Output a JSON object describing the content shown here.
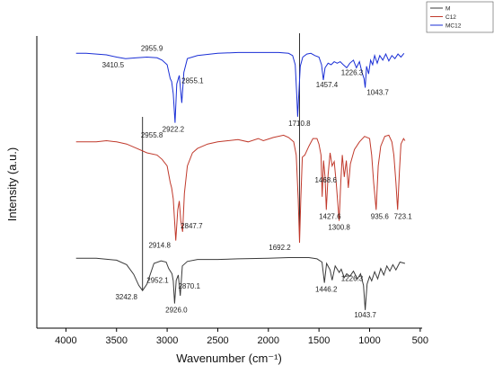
{
  "chart_data": {
    "type": "line",
    "title": "",
    "xlabel": "Wavenumber (cm⁻¹)",
    "ylabel": "Intensity (a.u.)",
    "x_ticks": [
      4000,
      3500,
      3000,
      2500,
      2000,
      1500,
      1000,
      500
    ],
    "x_tick_labels": [
      "4000",
      "3500",
      "3000",
      "2500",
      "2000",
      "1500",
      "1000",
      "500"
    ],
    "xlim": [
      4000,
      500
    ],
    "x_reversed": true,
    "grid": false,
    "legend_position": "top-right",
    "legend": [
      "M",
      "C12",
      "MC12"
    ],
    "series": [
      {
        "name": "M",
        "color": "#3a3a3a",
        "points": [
          [
            3900,
            0.9
          ],
          [
            3700,
            0.9
          ],
          [
            3500,
            0.87
          ],
          [
            3400,
            0.8
          ],
          [
            3330,
            0.65
          ],
          [
            3280,
            0.48
          ],
          [
            3242.8,
            0.4
          ],
          [
            3200,
            0.5
          ],
          [
            3130,
            0.82
          ],
          [
            3060,
            0.86
          ],
          [
            3010,
            0.84
          ],
          [
            2985,
            0.74
          ],
          [
            2952.1,
            0.66
          ],
          [
            2940,
            0.55
          ],
          [
            2926,
            0.2
          ],
          [
            2910,
            0.56
          ],
          [
            2890,
            0.64
          ],
          [
            2870.1,
            0.32
          ],
          [
            2850,
            0.78
          ],
          [
            2800,
            0.85
          ],
          [
            2700,
            0.88
          ],
          [
            2500,
            0.88
          ],
          [
            2300,
            0.89
          ],
          [
            2000,
            0.9
          ],
          [
            1800,
            0.91
          ],
          [
            1600,
            0.91
          ],
          [
            1520,
            0.89
          ],
          [
            1470,
            0.84
          ],
          [
            1446.2,
            0.52
          ],
          [
            1425,
            0.82
          ],
          [
            1390,
            0.72
          ],
          [
            1370,
            0.56
          ],
          [
            1340,
            0.78
          ],
          [
            1300,
            0.68
          ],
          [
            1280,
            0.73
          ],
          [
            1250,
            0.6
          ],
          [
            1226.3,
            0.66
          ],
          [
            1195,
            0.62
          ],
          [
            1160,
            0.7
          ],
          [
            1120,
            0.58
          ],
          [
            1090,
            0.66
          ],
          [
            1060,
            0.48
          ],
          [
            1043.7,
            0.1
          ],
          [
            1025,
            0.5
          ],
          [
            1000,
            0.62
          ],
          [
            980,
            0.55
          ],
          [
            950,
            0.69
          ],
          [
            920,
            0.58
          ],
          [
            890,
            0.74
          ],
          [
            860,
            0.64
          ],
          [
            830,
            0.78
          ],
          [
            800,
            0.7
          ],
          [
            770,
            0.8
          ],
          [
            740,
            0.72
          ],
          [
            700,
            0.84
          ],
          [
            650,
            0.82
          ]
        ]
      },
      {
        "name": "C12",
        "color": "#c0392b",
        "points": [
          [
            3900,
            0.92
          ],
          [
            3800,
            0.92
          ],
          [
            3700,
            0.92
          ],
          [
            3600,
            0.93
          ],
          [
            3500,
            0.92
          ],
          [
            3400,
            0.9
          ],
          [
            3300,
            0.86
          ],
          [
            3200,
            0.82
          ],
          [
            3100,
            0.8
          ],
          [
            3050,
            0.76
          ],
          [
            3000,
            0.7
          ],
          [
            2970,
            0.55
          ],
          [
            2955.8,
            0.5
          ],
          [
            2940,
            0.4
          ],
          [
            2914.8,
            0.02
          ],
          [
            2895,
            0.3
          ],
          [
            2880,
            0.38
          ],
          [
            2865,
            0.2
          ],
          [
            2847.7,
            0.1
          ],
          [
            2830,
            0.45
          ],
          [
            2800,
            0.7
          ],
          [
            2750,
            0.82
          ],
          [
            2700,
            0.86
          ],
          [
            2600,
            0.9
          ],
          [
            2500,
            0.92
          ],
          [
            2400,
            0.93
          ],
          [
            2300,
            0.94
          ],
          [
            2200,
            0.92
          ],
          [
            2100,
            0.95
          ],
          [
            2050,
            0.93
          ],
          [
            1950,
            0.96
          ],
          [
            1850,
            0.98
          ],
          [
            1800,
            0.96
          ],
          [
            1750,
            0.92
          ],
          [
            1725,
            0.8
          ],
          [
            1705,
            0.4
          ],
          [
            1692.2,
            0.0
          ],
          [
            1680,
            0.4
          ],
          [
            1665,
            0.78
          ],
          [
            1640,
            0.8
          ],
          [
            1600,
            0.88
          ],
          [
            1560,
            0.95
          ],
          [
            1520,
            0.95
          ],
          [
            1500,
            0.9
          ],
          [
            1480,
            0.8
          ],
          [
            1468.6,
            0.42
          ],
          [
            1455,
            0.75
          ],
          [
            1440,
            0.6
          ],
          [
            1427.6,
            0.3
          ],
          [
            1410,
            0.62
          ],
          [
            1390,
            0.82
          ],
          [
            1370,
            0.7
          ],
          [
            1350,
            0.74
          ],
          [
            1330,
            0.55
          ],
          [
            1300.8,
            0.2
          ],
          [
            1285,
            0.55
          ],
          [
            1270,
            0.8
          ],
          [
            1250,
            0.6
          ],
          [
            1230,
            0.75
          ],
          [
            1210,
            0.5
          ],
          [
            1190,
            0.72
          ],
          [
            1150,
            0.85
          ],
          [
            1100,
            0.92
          ],
          [
            1050,
            0.97
          ],
          [
            1000,
            0.95
          ],
          [
            980,
            0.8
          ],
          [
            960,
            0.55
          ],
          [
            935.6,
            0.3
          ],
          [
            915,
            0.7
          ],
          [
            890,
            0.88
          ],
          [
            850,
            0.97
          ],
          [
            810,
            0.98
          ],
          [
            780,
            0.92
          ],
          [
            760,
            0.8
          ],
          [
            740,
            0.55
          ],
          [
            723.1,
            0.3
          ],
          [
            705,
            0.65
          ],
          [
            690,
            0.9
          ],
          [
            665,
            0.95
          ],
          [
            650,
            0.93
          ]
        ]
      },
      {
        "name": "MC12",
        "color": "#1a2fd6",
        "points": [
          [
            3900,
            0.95
          ],
          [
            3800,
            0.95
          ],
          [
            3700,
            0.94
          ],
          [
            3600,
            0.93
          ],
          [
            3500,
            0.9
          ],
          [
            3410.5,
            0.88
          ],
          [
            3300,
            0.89
          ],
          [
            3200,
            0.9
          ],
          [
            3100,
            0.89
          ],
          [
            3050,
            0.86
          ],
          [
            3000,
            0.8
          ],
          [
            2970,
            0.62
          ],
          [
            2955.9,
            0.58
          ],
          [
            2940,
            0.42
          ],
          [
            2922.2,
            0.04
          ],
          [
            2905,
            0.55
          ],
          [
            2880,
            0.66
          ],
          [
            2855.1,
            0.3
          ],
          [
            2835,
            0.7
          ],
          [
            2800,
            0.88
          ],
          [
            2700,
            0.92
          ],
          [
            2500,
            0.95
          ],
          [
            2300,
            0.96
          ],
          [
            2100,
            0.96
          ],
          [
            1900,
            0.96
          ],
          [
            1800,
            0.95
          ],
          [
            1760,
            0.92
          ],
          [
            1735,
            0.8
          ],
          [
            1720,
            0.4
          ],
          [
            1710.8,
            0.12
          ],
          [
            1700,
            0.4
          ],
          [
            1685,
            0.78
          ],
          [
            1660,
            0.9
          ],
          [
            1620,
            0.94
          ],
          [
            1580,
            0.95
          ],
          [
            1540,
            0.92
          ],
          [
            1500,
            0.9
          ],
          [
            1475,
            0.8
          ],
          [
            1457.4,
            0.6
          ],
          [
            1440,
            0.76
          ],
          [
            1410,
            0.82
          ],
          [
            1380,
            0.8
          ],
          [
            1350,
            0.84
          ],
          [
            1320,
            0.82
          ],
          [
            1290,
            0.84
          ],
          [
            1260,
            0.8
          ],
          [
            1226.3,
            0.76
          ],
          [
            1195,
            0.82
          ],
          [
            1160,
            0.86
          ],
          [
            1130,
            0.76
          ],
          [
            1100,
            0.84
          ],
          [
            1075,
            0.7
          ],
          [
            1055,
            0.62
          ],
          [
            1043.7,
            0.5
          ],
          [
            1030,
            0.78
          ],
          [
            1010,
            0.68
          ],
          [
            990,
            0.86
          ],
          [
            970,
            0.8
          ],
          [
            950,
            0.92
          ],
          [
            925,
            0.82
          ],
          [
            900,
            0.92
          ],
          [
            870,
            0.86
          ],
          [
            840,
            0.94
          ],
          [
            810,
            0.85
          ],
          [
            780,
            0.92
          ],
          [
            750,
            0.88
          ],
          [
            720,
            0.94
          ],
          [
            690,
            0.9
          ],
          [
            660,
            0.95
          ]
        ]
      }
    ],
    "annotations": [
      {
        "text": "3410.5",
        "x": 3410.5,
        "series": "MC12"
      },
      {
        "text": "2955.9",
        "x": 2955.9,
        "series": "MC12"
      },
      {
        "text": "2855.1",
        "x": 2855.1,
        "series": "MC12"
      },
      {
        "text": "2922.2",
        "x": 2922.2,
        "series": "MC12"
      },
      {
        "text": "1710.8",
        "x": 1710.8,
        "series": "MC12"
      },
      {
        "text": "1457.4",
        "x": 1457.4,
        "series": "MC12"
      },
      {
        "text": "1226.3",
        "x": 1226.3,
        "series": "MC12"
      },
      {
        "text": "1043.7",
        "x": 1043.7,
        "series": "MC12"
      },
      {
        "text": "2955.8",
        "x": 2955.8,
        "series": "C12"
      },
      {
        "text": "2914.8",
        "x": 2914.8,
        "series": "C12"
      },
      {
        "text": "2847.7",
        "x": 2847.7,
        "series": "C12"
      },
      {
        "text": "1692.2",
        "x": 1692.2,
        "series": "C12"
      },
      {
        "text": "1468.6",
        "x": 1468.6,
        "series": "C12"
      },
      {
        "text": "1427.6",
        "x": 1427.6,
        "series": "C12"
      },
      {
        "text": "1300.8",
        "x": 1300.8,
        "series": "C12"
      },
      {
        "text": "935.6",
        "x": 935.6,
        "series": "C12"
      },
      {
        "text": "723.1",
        "x": 723.1,
        "series": "C12"
      },
      {
        "text": "3242.8",
        "x": 3242.8,
        "series": "M"
      },
      {
        "text": "2952.1",
        "x": 2952.1,
        "series": "M"
      },
      {
        "text": "2870.1",
        "x": 2870.1,
        "series": "M"
      },
      {
        "text": "2926.0",
        "x": 2926.0,
        "series": "M"
      },
      {
        "text": "1446.2",
        "x": 1446.2,
        "series": "M"
      },
      {
        "text": "1226.3",
        "x": 1226.3,
        "series": "M"
      },
      {
        "text": "1043.7",
        "x": 1043.7,
        "series": "M"
      }
    ],
    "reference_lines": [
      {
        "x": 3242.8,
        "from_series": "M",
        "to_series": "C12"
      },
      {
        "x": 1692.2,
        "from_series": "C12",
        "to_series": "MC12"
      }
    ]
  }
}
